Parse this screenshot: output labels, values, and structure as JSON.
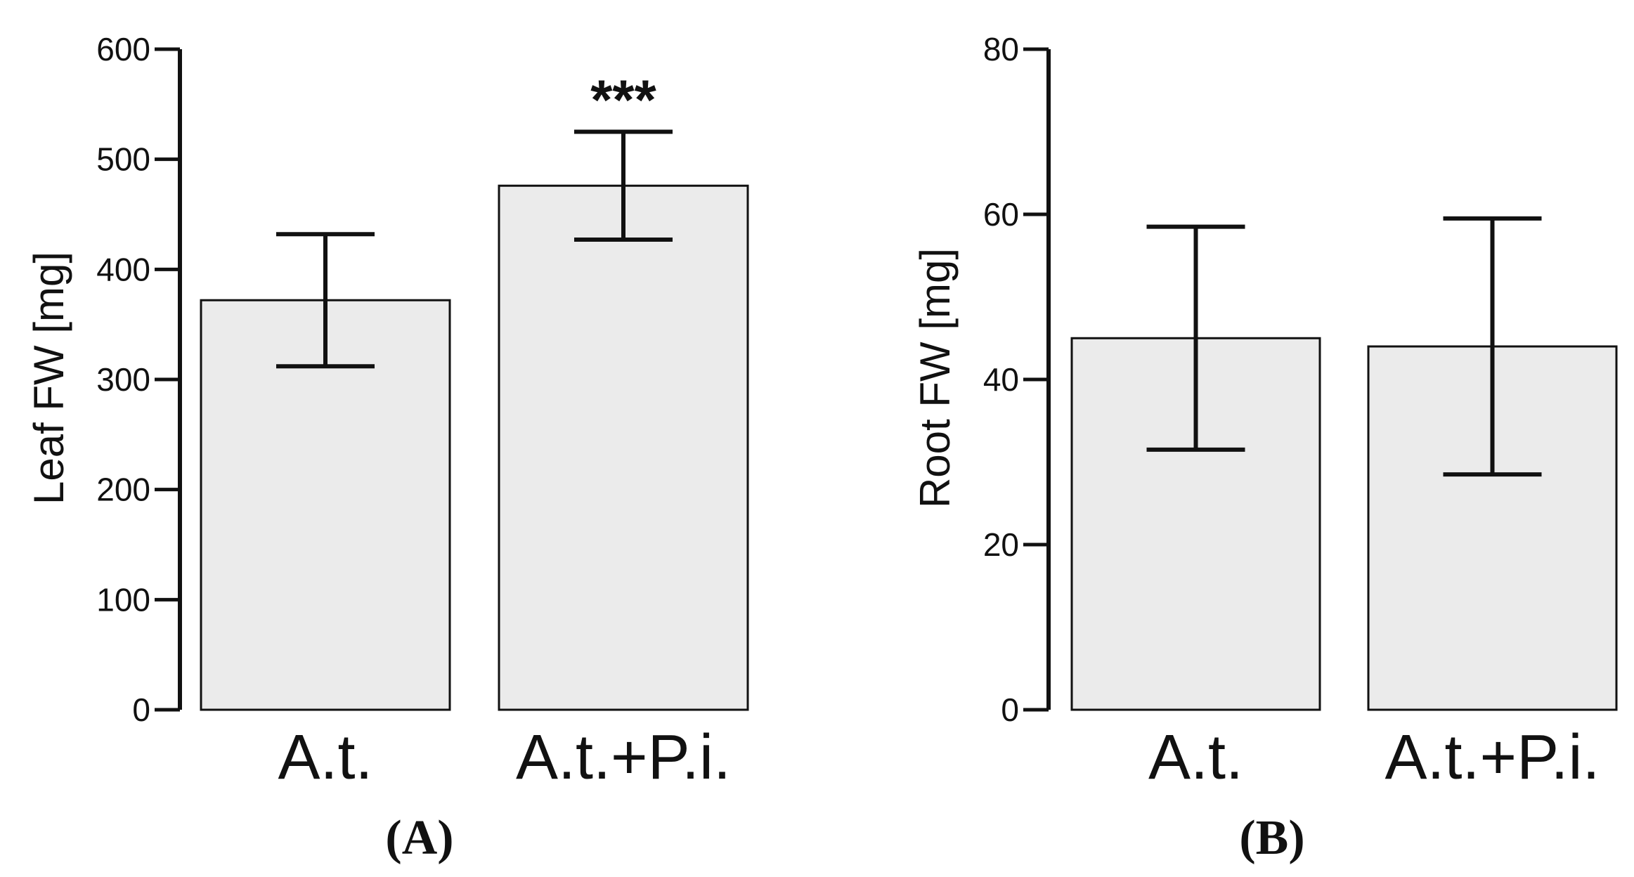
{
  "colors": {
    "bar_fill": "#ebebeb",
    "stroke": "#111111"
  },
  "chart_data": [
    {
      "type": "bar",
      "panel_label": "(A)",
      "ylabel": "Leaf FW [mg]",
      "ylim": [
        0,
        600
      ],
      "yticks": [
        0,
        100,
        200,
        300,
        400,
        500,
        600
      ],
      "categories": [
        "A.t.",
        "A.t.+P.i."
      ],
      "values": [
        372,
        476
      ],
      "errors": [
        60,
        49
      ],
      "annotations": [
        "",
        "***"
      ]
    },
    {
      "type": "bar",
      "panel_label": "(B)",
      "ylabel": "Root FW [mg]",
      "ylim": [
        0,
        80
      ],
      "yticks": [
        0,
        20,
        40,
        60,
        80
      ],
      "categories": [
        "A.t.",
        "A.t.+P.i."
      ],
      "values": [
        45,
        44
      ],
      "errors": [
        13.5,
        15.5
      ],
      "annotations": [
        "",
        ""
      ]
    }
  ]
}
